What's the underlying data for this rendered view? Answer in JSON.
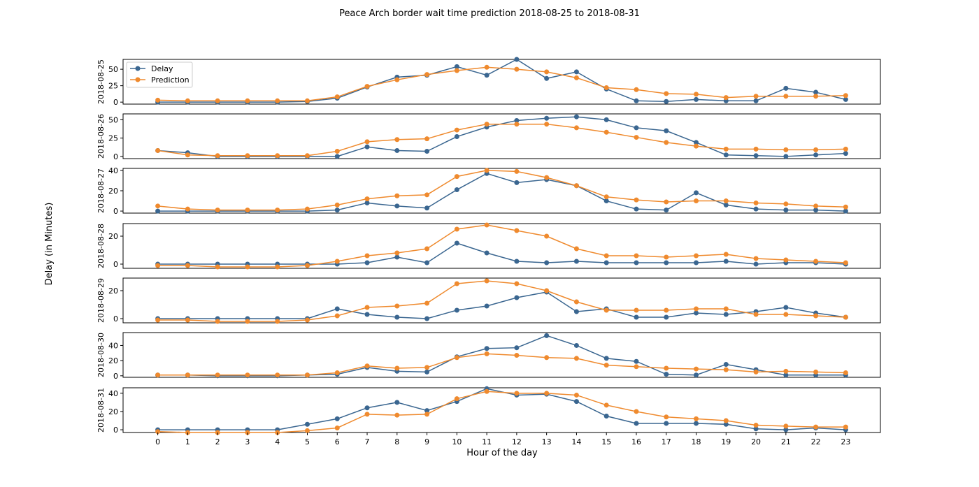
{
  "chart_data": {
    "type": "line",
    "title": "Peace Arch border wait time prediction 2018-08-25 to 2018-08-31",
    "xlabel": "Hour of the day",
    "ylabel": "Delay (in Minutes)",
    "x": [
      0,
      1,
      2,
      3,
      4,
      5,
      6,
      7,
      8,
      9,
      10,
      11,
      12,
      13,
      14,
      15,
      16,
      17,
      18,
      19,
      20,
      21,
      22,
      23
    ],
    "legend": {
      "placement": "top-left",
      "entries": [
        "Delay",
        "Prediction"
      ]
    },
    "colors": {
      "delay": "#3a6690",
      "prediction": "#ef8a2e"
    },
    "panels": [
      {
        "label": "2018-08-25",
        "ylim": [
          -3,
          65
        ],
        "yticks": [
          0,
          25,
          50
        ],
        "series": [
          {
            "name": "Delay",
            "values": [
              0,
              0,
              0,
              0,
              0,
              1,
              6,
              23,
              38,
              41,
              54,
              41,
              65,
              36,
              46,
              20,
              2,
              1,
              4,
              2,
              2,
              21,
              15,
              4
            ]
          },
          {
            "name": "Prediction",
            "values": [
              3,
              2,
              2,
              2,
              2,
              2,
              8,
              24,
              34,
              42,
              48,
              53,
              50,
              46,
              37,
              22,
              19,
              13,
              12,
              7,
              9,
              9,
              9,
              10
            ]
          }
        ]
      },
      {
        "label": "2018-08-26",
        "ylim": [
          -3,
          58
        ],
        "yticks": [
          0,
          25,
          50
        ],
        "series": [
          {
            "name": "Delay",
            "values": [
              8,
              5,
              0,
              0,
              0,
              0,
              0,
              13,
              8,
              7,
              27,
              40,
              49,
              52,
              54,
              50,
              39,
              35,
              19,
              2,
              1,
              0,
              2,
              4
            ]
          },
          {
            "name": "Prediction",
            "values": [
              8,
              2,
              1,
              1,
              1,
              1,
              7,
              20,
              23,
              24,
              36,
              44,
              44,
              44,
              39,
              33,
              26,
              19,
              14,
              10,
              10,
              9,
              9,
              10
            ]
          }
        ]
      },
      {
        "label": "2018-08-27",
        "ylim": [
          -2,
          42
        ],
        "yticks": [
          0,
          20,
          40
        ],
        "series": [
          {
            "name": "Delay",
            "values": [
              0,
              0,
              0,
              0,
              0,
              0,
              1,
              8,
              5,
              3,
              21,
              37,
              28,
              31,
              25,
              10,
              2,
              1,
              18,
              6,
              2,
              1,
              1,
              0
            ]
          },
          {
            "name": "Prediction",
            "values": [
              5,
              2,
              1,
              1,
              1,
              2,
              6,
              12,
              15,
              16,
              34,
              40,
              39,
              33,
              25,
              14,
              11,
              9,
              10,
              10,
              8,
              7,
              5,
              4
            ]
          }
        ]
      },
      {
        "label": "2018-08-28",
        "ylim": [
          -3,
          29
        ],
        "yticks": [
          0,
          20
        ],
        "series": [
          {
            "name": "Delay",
            "values": [
              0,
              0,
              0,
              0,
              0,
              0,
              0,
              1,
              5,
              1,
              15,
              8,
              2,
              1,
              2,
              1,
              1,
              1,
              1,
              2,
              0,
              1,
              1,
              0
            ]
          },
          {
            "name": "Prediction",
            "values": [
              -1,
              -1,
              -2,
              -2,
              -2,
              -1,
              2,
              6,
              8,
              11,
              25,
              28,
              24,
              20,
              11,
              6,
              6,
              5,
              6,
              7,
              4,
              3,
              2,
              1
            ]
          }
        ]
      },
      {
        "label": "2018-08-29",
        "ylim": [
          -3,
          29
        ],
        "yticks": [
          0,
          20
        ],
        "series": [
          {
            "name": "Delay",
            "values": [
              0,
              0,
              0,
              0,
              0,
              0,
              7,
              3,
              1,
              0,
              6,
              9,
              15,
              19,
              5,
              7,
              1,
              1,
              4,
              3,
              5,
              8,
              4,
              1
            ]
          },
          {
            "name": "Prediction",
            "values": [
              -1,
              -1,
              -2,
              -2,
              -2,
              -1,
              2,
              8,
              9,
              11,
              25,
              27,
              25,
              20,
              12,
              6,
              6,
              6,
              7,
              7,
              3,
              3,
              2,
              1
            ]
          }
        ]
      },
      {
        "label": "2018-08-30",
        "ylim": [
          -2,
          57
        ],
        "yticks": [
          0,
          20,
          40
        ],
        "series": [
          {
            "name": "Delay",
            "values": [
              1,
              1,
              0,
              0,
              0,
              1,
              2,
              11,
              6,
              5,
              25,
              36,
              37,
              53,
              40,
              23,
              19,
              2,
              1,
              15,
              8,
              1,
              1,
              1
            ]
          },
          {
            "name": "Prediction",
            "values": [
              1,
              1,
              1,
              1,
              1,
              1,
              4,
              13,
              10,
              11,
              24,
              29,
              27,
              24,
              23,
              14,
              12,
              10,
              9,
              8,
              5,
              6,
              5,
              4
            ]
          }
        ]
      },
      {
        "label": "2018-08-31",
        "ylim": [
          -3,
          46
        ],
        "yticks": [
          0,
          20,
          40
        ],
        "series": [
          {
            "name": "Delay",
            "values": [
              0,
              0,
              0,
              0,
              0,
              6,
              12,
              24,
              30,
              21,
              31,
              45,
              38,
              39,
              31,
              15,
              7,
              7,
              7,
              6,
              1,
              0,
              2,
              0
            ]
          },
          {
            "name": "Prediction",
            "values": [
              -2,
              -3,
              -3,
              -3,
              -3,
              -1,
              2,
              17,
              16,
              17,
              34,
              42,
              40,
              40,
              38,
              27,
              20,
              14,
              12,
              10,
              5,
              4,
              3,
              3
            ]
          }
        ]
      }
    ]
  }
}
